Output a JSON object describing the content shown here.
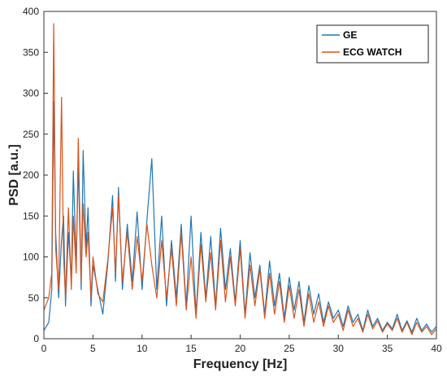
{
  "chart_data": {
    "type": "line",
    "xlabel": "Frequency [Hz]",
    "ylabel": "PSD [a.u.]",
    "xlim": [
      0,
      40
    ],
    "ylim": [
      0,
      400
    ],
    "xticks": [
      0,
      5,
      10,
      15,
      20,
      25,
      30,
      35,
      40
    ],
    "yticks": [
      0,
      50,
      100,
      150,
      200,
      250,
      300,
      350,
      400
    ],
    "grid": false,
    "legend_position": "top-right",
    "series": [
      {
        "name": "GE",
        "color": "#1f77b4",
        "x": [
          0,
          0.5,
          0.8,
          1.0,
          1.2,
          1.5,
          1.8,
          2.0,
          2.2,
          2.5,
          2.8,
          3.0,
          3.3,
          3.5,
          3.8,
          4.0,
          4.3,
          4.5,
          4.8,
          5.0,
          5.5,
          6.0,
          6.5,
          7.0,
          7.3,
          7.6,
          8.0,
          8.5,
          9.0,
          9.5,
          10.0,
          10.5,
          11.0,
          11.5,
          12.0,
          12.5,
          13.0,
          13.5,
          14.0,
          14.5,
          15.0,
          15.5,
          16.0,
          16.5,
          17.0,
          17.5,
          18.0,
          18.5,
          19.0,
          19.5,
          20.0,
          20.5,
          21.0,
          21.5,
          22.0,
          22.5,
          23.0,
          23.5,
          24.0,
          24.5,
          25.0,
          25.5,
          26.0,
          26.5,
          27.0,
          27.5,
          28.0,
          28.5,
          29.0,
          29.5,
          30.0,
          30.5,
          31.0,
          31.5,
          32.0,
          32.5,
          33.0,
          33.5,
          34.0,
          34.5,
          35.0,
          35.5,
          36.0,
          36.5,
          37.0,
          37.5,
          38.0,
          38.5,
          39.0,
          39.5,
          40.0
        ],
        "values": [
          10,
          20,
          60,
          290,
          130,
          50,
          120,
          150,
          40,
          130,
          70,
          205,
          90,
          215,
          60,
          230,
          110,
          160,
          40,
          90,
          60,
          30,
          90,
          175,
          70,
          185,
          60,
          140,
          70,
          155,
          60,
          145,
          220,
          60,
          150,
          40,
          120,
          50,
          140,
          40,
          150,
          30,
          130,
          50,
          125,
          40,
          135,
          60,
          110,
          45,
          120,
          30,
          105,
          50,
          90,
          30,
          95,
          40,
          80,
          25,
          75,
          35,
          70,
          20,
          65,
          30,
          55,
          20,
          45,
          25,
          35,
          15,
          40,
          20,
          30,
          10,
          35,
          15,
          25,
          10,
          20,
          12,
          30,
          10,
          22,
          8,
          25,
          10,
          18,
          8,
          15
        ]
      },
      {
        "name": "ECG WATCH",
        "color": "#d95319",
        "x": [
          0,
          0.5,
          0.8,
          1.0,
          1.2,
          1.5,
          1.8,
          2.0,
          2.2,
          2.5,
          2.8,
          3.0,
          3.3,
          3.5,
          3.8,
          4.0,
          4.3,
          4.5,
          4.8,
          5.0,
          5.5,
          6.0,
          6.5,
          7.0,
          7.3,
          7.6,
          8.0,
          8.5,
          9.0,
          9.5,
          10.0,
          10.5,
          11.0,
          11.5,
          12.0,
          12.5,
          13.0,
          13.5,
          14.0,
          14.5,
          15.0,
          15.5,
          16.0,
          16.5,
          17.0,
          17.5,
          18.0,
          18.5,
          19.0,
          19.5,
          20.0,
          20.5,
          21.0,
          21.5,
          22.0,
          22.5,
          23.0,
          23.5,
          24.0,
          24.5,
          25.0,
          25.5,
          26.0,
          26.5,
          27.0,
          27.5,
          28.0,
          28.5,
          29.0,
          29.5,
          30.0,
          30.5,
          31.0,
          31.5,
          32.0,
          32.5,
          33.0,
          33.5,
          34.0,
          34.5,
          35.0,
          35.5,
          36.0,
          36.5,
          37.0,
          37.5,
          38.0,
          38.5,
          39.0,
          39.5,
          40.0
        ],
        "values": [
          35,
          50,
          80,
          385,
          110,
          60,
          295,
          100,
          50,
          160,
          60,
          150,
          80,
          245,
          70,
          165,
          100,
          130,
          50,
          100,
          55,
          45,
          95,
          160,
          80,
          175,
          70,
          130,
          60,
          125,
          70,
          140,
          90,
          50,
          120,
          50,
          110,
          40,
          130,
          35,
          100,
          25,
          115,
          45,
          105,
          35,
          120,
          45,
          100,
          40,
          110,
          25,
          90,
          40,
          85,
          25,
          80,
          30,
          70,
          20,
          65,
          25,
          60,
          15,
          55,
          20,
          45,
          15,
          40,
          20,
          30,
          10,
          35,
          15,
          25,
          8,
          30,
          12,
          22,
          8,
          18,
          10,
          25,
          8,
          20,
          5,
          20,
          8,
          15,
          5,
          12
        ]
      }
    ]
  }
}
